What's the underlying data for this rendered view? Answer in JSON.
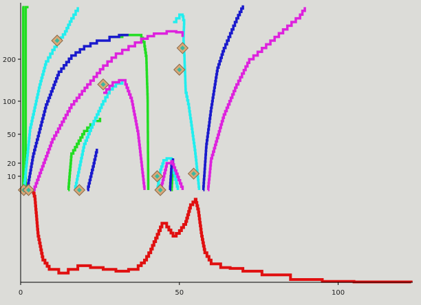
{
  "chart_data": {
    "type": "line",
    "title": "",
    "xlabel": "",
    "ylabel": "",
    "xlim": [
      0,
      123.5
    ],
    "ylim_upper_area": [
      0,
      500
    ],
    "x_ticks": [
      {
        "value": 0,
        "label": "0"
      },
      {
        "value": 50,
        "label": "50"
      },
      {
        "value": 100,
        "label": "100"
      }
    ],
    "y_ticks": [
      {
        "value": 200,
        "label": "200"
      },
      {
        "value": 100,
        "label": "100"
      },
      {
        "value": 50,
        "label": "50"
      },
      {
        "value": 20,
        "label": "20"
      },
      {
        "value": 10,
        "label": "10"
      }
    ],
    "grid": false,
    "legend": "none",
    "colors": {
      "background": "#dcdcd8",
      "axis": "#000000",
      "red": "#e01010",
      "green": "#22dd22",
      "cyan": "#22eeee",
      "blue": "#1a1acc",
      "magenta": "#dd22dd",
      "marker_fill": "#d8a878",
      "marker_center": "#3cb8a0"
    },
    "series": [
      {
        "color_key": "red",
        "points": [
          [
            3.8,
            0
          ],
          [
            4.5,
            -5
          ],
          [
            5.5,
            -25
          ],
          [
            7,
            -38
          ],
          [
            9,
            -43
          ],
          [
            12,
            -45
          ],
          [
            15,
            -43
          ],
          [
            18,
            -41
          ],
          [
            22,
            -42
          ],
          [
            26,
            -43
          ],
          [
            30,
            -44
          ],
          [
            34,
            -43
          ],
          [
            37,
            -41
          ],
          [
            39,
            -38
          ],
          [
            41,
            -32
          ],
          [
            43,
            -24
          ],
          [
            44.5,
            -18
          ],
          [
            46,
            -20
          ],
          [
            48,
            -25
          ],
          [
            50,
            -22
          ],
          [
            52,
            -17
          ],
          [
            53.5,
            -8
          ],
          [
            55,
            -5
          ],
          [
            56,
            -12
          ],
          [
            57,
            -25
          ],
          [
            58,
            -34
          ],
          [
            60,
            -40
          ],
          [
            63,
            -42
          ],
          [
            66,
            -42.5
          ],
          [
            70,
            -44
          ],
          [
            76,
            -46
          ],
          [
            85,
            -48.5
          ],
          [
            95,
            -49.5
          ],
          [
            105,
            -49.8
          ],
          [
            123,
            -50
          ]
        ]
      },
      {
        "color_key": "green",
        "points": [
          [
            0.5,
            480
          ],
          [
            0.8,
            480
          ],
          [
            0.8,
            0
          ],
          [
            1.6,
            0
          ],
          [
            1.6,
            480
          ],
          [
            2.5,
            480
          ]
        ]
      },
      {
        "color_key": "green",
        "points": [
          [
            15,
            0
          ],
          [
            16,
            30
          ],
          [
            20,
            55
          ],
          [
            23,
            70
          ],
          [
            25,
            75
          ]
        ]
      },
      {
        "color_key": "green",
        "points": [
          [
            28,
            320
          ],
          [
            32,
            330
          ],
          [
            35,
            330
          ],
          [
            38,
            315
          ],
          [
            39,
            270
          ],
          [
            39.6,
            200
          ],
          [
            40,
            100
          ],
          [
            40.2,
            0
          ]
        ]
      },
      {
        "color_key": "green",
        "points": [
          [
            47.5,
            0
          ],
          [
            48,
            18
          ]
        ]
      },
      {
        "color_key": "cyan",
        "points": [
          [
            1,
            0
          ],
          [
            3,
            60
          ],
          [
            6,
            140
          ],
          [
            8,
            195
          ],
          [
            10,
            250
          ],
          [
            12,
            300
          ],
          [
            14,
            350
          ],
          [
            16,
            420
          ],
          [
            18,
            480
          ]
        ]
      },
      {
        "color_key": "cyan",
        "points": [
          [
            17,
            0
          ],
          [
            20,
            40
          ],
          [
            23,
            70
          ],
          [
            26,
            100
          ],
          [
            28,
            128
          ],
          [
            30,
            142
          ],
          [
            32,
            150
          ]
        ]
      },
      {
        "color_key": "cyan",
        "points": [
          [
            43,
            0
          ],
          [
            44,
            15
          ],
          [
            45,
            23
          ],
          [
            46,
            25
          ],
          [
            47.5,
            24
          ],
          [
            48.5,
            10
          ],
          [
            49.5,
            0
          ]
        ]
      },
      {
        "color_key": "cyan",
        "points": [
          [
            48,
            400
          ],
          [
            50,
            440
          ],
          [
            51,
            430
          ],
          [
            51.5,
            390
          ],
          [
            51.3,
            300
          ],
          [
            51.6,
            200
          ],
          [
            52,
            120
          ],
          [
            53,
            90
          ],
          [
            55,
            30
          ],
          [
            56.2,
            0
          ]
        ]
      },
      {
        "color_key": "blue",
        "points": [
          [
            2,
            0
          ],
          [
            4,
            30
          ],
          [
            8,
            95
          ],
          [
            12,
            170
          ],
          [
            16,
            220
          ],
          [
            20,
            270
          ],
          [
            24,
            300
          ],
          [
            28,
            320
          ],
          [
            31,
            330
          ],
          [
            34,
            330
          ]
        ]
      },
      {
        "color_key": "blue",
        "points": [
          [
            21,
            0
          ],
          [
            23,
            20
          ],
          [
            24,
            35
          ]
        ]
      },
      {
        "color_key": "blue",
        "points": [
          [
            47,
            0
          ],
          [
            47.5,
            18
          ],
          [
            48,
            25
          ]
        ]
      },
      {
        "color_key": "blue",
        "points": [
          [
            57.5,
            0
          ],
          [
            58.5,
            40
          ],
          [
            60,
            90
          ],
          [
            62,
            180
          ],
          [
            64,
            260
          ],
          [
            66,
            340
          ],
          [
            68,
            420
          ],
          [
            70,
            490
          ]
        ]
      },
      {
        "color_key": "magenta",
        "points": [
          [
            4,
            0
          ],
          [
            10,
            45
          ],
          [
            16,
            95
          ],
          [
            21,
            140
          ],
          [
            26,
            185
          ],
          [
            30,
            230
          ],
          [
            34,
            270
          ],
          [
            38,
            310
          ],
          [
            42,
            338
          ],
          [
            46,
            350
          ],
          [
            49,
            345
          ],
          [
            51,
            320
          ]
        ]
      },
      {
        "color_key": "magenta",
        "points": [
          [
            26,
            120
          ],
          [
            29,
            145
          ],
          [
            31,
            150
          ],
          [
            33,
            140
          ],
          [
            35,
            100
          ],
          [
            37,
            50
          ],
          [
            39,
            0
          ]
        ]
      },
      {
        "color_key": "magenta",
        "points": [
          [
            44,
            0
          ],
          [
            46,
            20
          ],
          [
            47.5,
            22
          ],
          [
            49,
            12
          ],
          [
            51,
            0
          ]
        ]
      },
      {
        "color_key": "magenta",
        "points": [
          [
            59,
            0
          ],
          [
            60,
            25
          ],
          [
            64,
            80
          ],
          [
            68,
            140
          ],
          [
            72,
            200
          ],
          [
            76,
            260
          ],
          [
            80,
            320
          ],
          [
            84,
            380
          ],
          [
            88,
            440
          ],
          [
            89.5,
            480
          ]
        ]
      }
    ],
    "markers": [
      [
        1,
        0
      ],
      [
        2.5,
        0
      ],
      [
        11.5,
        300
      ],
      [
        18.5,
        0
      ],
      [
        26,
        140
      ],
      [
        43,
        10
      ],
      [
        44,
        0
      ],
      [
        50,
        175
      ],
      [
        51,
        260
      ],
      [
        54.5,
        12
      ]
    ]
  }
}
